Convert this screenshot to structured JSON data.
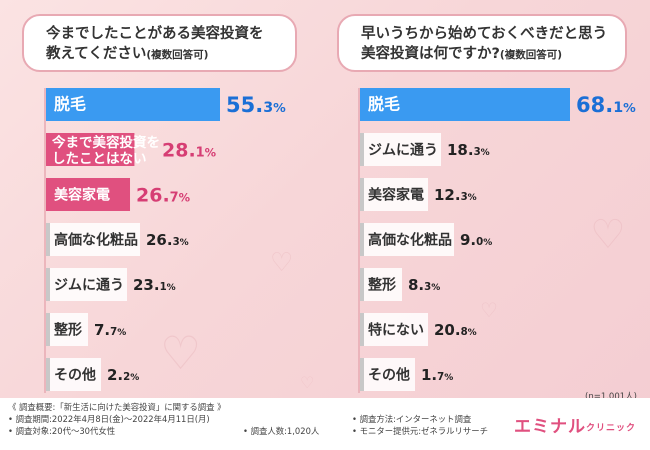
{
  "left_title": {
    "line1": "今までしたことがある美容投資を",
    "line2": "教えてください",
    "note": "(複数回答可)"
  },
  "right_title": {
    "line1": "早いうちから始めておくべきだと思う",
    "line2": "美容投資は何ですか?",
    "note": "(複数回答可)"
  },
  "sample_size_note": "(n=1,001人)",
  "colors": {
    "top": "#3a9af1",
    "second": "#e0507f",
    "other": "#c8c8c8",
    "value_other": "#222222",
    "value_top": "#1b6fd6",
    "value_second": "#d63e74"
  },
  "chart_data": [
    {
      "type": "bar",
      "categories": [
        "脱毛",
        "今まで美容投資をしたことはない",
        "美容家電",
        "高価な化粧品",
        "ジムに通う",
        "整形",
        "その他"
      ],
      "category_lines": [
        [
          "脱毛"
        ],
        [
          "今まで美容投資を",
          "したことはない"
        ],
        [
          "美容家電"
        ],
        [
          "高価な化粧品"
        ],
        [
          "ジムに通う"
        ],
        [
          "整形"
        ],
        [
          "その他"
        ]
      ],
      "values": [
        55.3,
        28.1,
        26.7,
        26.3,
        23.1,
        7.7,
        2.2
      ],
      "value_labels": [
        [
          "55.",
          "3",
          "%"
        ],
        [
          "28.",
          "1",
          "%"
        ],
        [
          "26.",
          "7",
          "%"
        ],
        [
          "26.",
          "3",
          "%"
        ],
        [
          "23.",
          "1",
          "%"
        ],
        [
          "7.",
          "7",
          "%"
        ],
        [
          "2.",
          "2",
          "%"
        ]
      ],
      "highlight": [
        "top",
        "second",
        "second",
        "other",
        "other",
        "other",
        "other"
      ]
    },
    {
      "type": "bar",
      "categories": [
        "脱毛",
        "ジムに通う",
        "美容家電",
        "高価な化粧品",
        "整形",
        "特にない",
        "その他"
      ],
      "category_lines": [
        [
          "脱毛"
        ],
        [
          "ジムに通う"
        ],
        [
          "美容家電"
        ],
        [
          "高価な化粧品"
        ],
        [
          "整形"
        ],
        [
          "特にない"
        ],
        [
          "その他"
        ]
      ],
      "values": [
        68.1,
        18.3,
        12.3,
        9.0,
        8.3,
        20.8,
        1.7
      ],
      "value_labels": [
        [
          "68.",
          "1",
          "%"
        ],
        [
          "18.",
          "3",
          "%"
        ],
        [
          "12.",
          "3",
          "%"
        ],
        [
          "9.",
          "0",
          "%"
        ],
        [
          "8.",
          "3",
          "%"
        ],
        [
          "20.",
          "8",
          "%"
        ],
        [
          "1.",
          "7",
          "%"
        ]
      ],
      "highlight": [
        "top",
        "other",
        "other",
        "other",
        "other",
        "other",
        "other"
      ]
    }
  ],
  "footer": {
    "overview": "《 調査概要:「新生活に向けた美容投資」に関する調査 》",
    "period": "• 調査期間:2022年4月8日(金)〜2022年4月11日(月)",
    "target": "• 調査対象:20代〜30代女性",
    "count": "• 調査人数:1,020人",
    "method": "• 調査方法:インターネット調査",
    "provider": "• モニター提供元:ゼネラルリサーチ",
    "logo_main": "エミナル",
    "logo_sub": "クリニック"
  }
}
